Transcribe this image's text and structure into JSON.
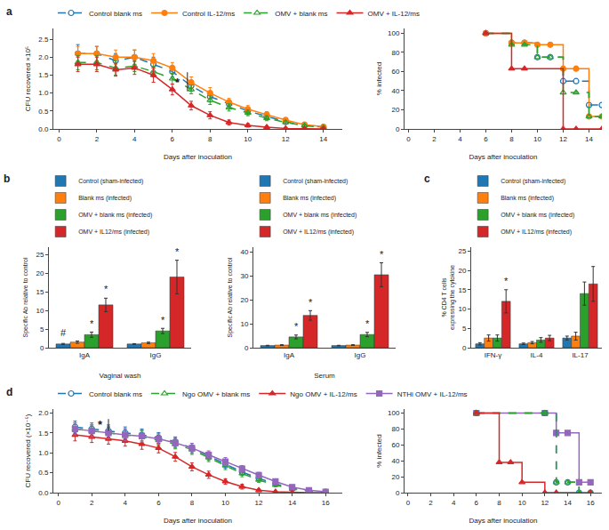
{
  "chart_data": [
    {
      "type": "line",
      "title": "a",
      "xlabel": "Days after inoculation",
      "ylabel": "CFU recovered ×10⁵",
      "x": [
        1,
        2,
        3,
        4,
        5,
        6,
        7,
        8,
        9,
        10,
        11,
        12,
        13,
        14
      ],
      "series": [
        {
          "name": "Control blank ms",
          "color": "#1f77b4",
          "marker": "circle-open",
          "line_style": "dash",
          "values": [
            2.1,
            2.1,
            1.9,
            2.0,
            1.8,
            1.6,
            1.2,
            0.9,
            0.7,
            0.5,
            0.35,
            0.2,
            0.1,
            0.05
          ],
          "errors": [
            0.25,
            0.2,
            0.2,
            0.2,
            0.2,
            0.15,
            0.15,
            0.15,
            0.1,
            0.1,
            0.08,
            0.05,
            0.04,
            0.02
          ]
        },
        {
          "name": "Control IL-12/ms",
          "color": "#ff7f0e",
          "marker": "circle",
          "line_style": "solid",
          "values": [
            2.1,
            2.1,
            2.0,
            2.0,
            1.9,
            1.7,
            1.3,
            1.0,
            0.75,
            0.55,
            0.4,
            0.25,
            0.12,
            0.06
          ],
          "errors": [
            0.2,
            0.2,
            0.2,
            0.2,
            0.2,
            0.15,
            0.15,
            0.15,
            0.1,
            0.1,
            0.08,
            0.05,
            0.04,
            0.02
          ]
        },
        {
          "name": "OMV + blank ms",
          "color": "#2ca02c",
          "marker": "triangle-up-open",
          "line_style": "dash",
          "values": [
            1.85,
            1.85,
            1.7,
            1.75,
            1.6,
            1.4,
            1.1,
            0.8,
            0.6,
            0.45,
            0.3,
            0.18,
            0.09,
            0.04
          ],
          "errors": [
            0.2,
            0.2,
            0.2,
            0.15,
            0.15,
            0.15,
            0.12,
            0.12,
            0.1,
            0.08,
            0.07,
            0.05,
            0.03,
            0.02
          ]
        },
        {
          "name": "OMV + IL-12/ms",
          "color": "#d62728",
          "marker": "triangle-up",
          "line_style": "solid",
          "values": [
            1.8,
            1.8,
            1.65,
            1.7,
            1.5,
            1.1,
            0.65,
            0.38,
            0.18,
            0.1,
            0.05,
            0.015,
            0.005,
            0.002
          ],
          "errors": [
            0.2,
            0.2,
            0.18,
            0.18,
            0.2,
            0.15,
            0.12,
            0.1,
            0.07,
            0.05,
            0.03,
            0.01,
            0.004,
            0.002
          ]
        }
      ],
      "xlim": [
        -0.3,
        15
      ],
      "xticks": [
        0,
        2,
        4,
        6,
        8,
        10,
        12,
        14
      ],
      "ylim": [
        0,
        2.8
      ],
      "yticks": [
        {
          "value": 0,
          "label": "0.0"
        },
        0.5,
        {
          "value": 1,
          "label": "1.0"
        },
        1.5,
        {
          "value": 2,
          "label": "2.0"
        },
        2.5
      ],
      "grid": false,
      "legend": "top",
      "annotations": [
        {
          "text": "*",
          "x": 6.3,
          "y": 1.3,
          "bracket": {
            "x": 6.8,
            "y": [
              1.05,
              1.58
            ]
          }
        }
      ]
    },
    {
      "type": "step",
      "xlabel": "Days after inoculation",
      "ylabel": "% infected",
      "series": [
        {
          "color": "#1f77b4",
          "marker": "circle-open",
          "line_style": "dash",
          "x": [
            6,
            8,
            9,
            10,
            11,
            12,
            13,
            14,
            15
          ],
          "values": [
            100,
            90,
            90,
            75,
            75,
            50,
            50,
            25,
            25
          ]
        },
        {
          "color": "#ff7f0e",
          "marker": "circle",
          "line_style": "solid",
          "x": [
            6,
            8,
            9,
            10,
            11,
            12,
            13,
            14,
            15
          ],
          "values": [
            100,
            90,
            90,
            88,
            88,
            63,
            63,
            13,
            13
          ]
        },
        {
          "color": "#2ca02c",
          "marker": "triangle-up-open",
          "line_style": "dash",
          "x": [
            6,
            8,
            9,
            10,
            11,
            12,
            13,
            14,
            15
          ],
          "values": [
            100,
            88,
            88,
            75,
            75,
            38,
            38,
            13,
            13
          ]
        },
        {
          "color": "#d62728",
          "marker": "triangle-up",
          "line_style": "solid",
          "x": [
            6,
            8,
            9,
            12,
            13,
            15
          ],
          "values": [
            100,
            63,
            63,
            0,
            0,
            0
          ]
        }
      ],
      "xlim": [
        -0.3,
        15
      ],
      "xticks": [
        0,
        2,
        4,
        6,
        8,
        10,
        12,
        14
      ],
      "ylim": [
        0,
        105
      ],
      "yticks": [
        0,
        20,
        40,
        60,
        80,
        100
      ],
      "grid": false,
      "legend": false
    },
    {
      "type": "bar",
      "title": "b",
      "xlabel": "Vaginal wash",
      "ylabel": "Specific Ab relative to control",
      "categories": [
        "IgA",
        "IgG"
      ],
      "series": [
        {
          "name": "Control (sham-infected)",
          "color": "#1f77b4",
          "values": [
            1.0,
            1.0
          ],
          "errors": [
            0.15,
            0.1
          ]
        },
        {
          "name": "Blank ms (infected)",
          "color": "#ff7f0e",
          "values": [
            1.5,
            1.3
          ],
          "errors": [
            0.3,
            0.2
          ]
        },
        {
          "name": "OMV + blank ms (infected)",
          "color": "#2ca02c",
          "values": [
            3.5,
            4.5
          ],
          "errors": [
            0.7,
            0.7
          ]
        },
        {
          "name": "OMV + IL12/ms (infected)",
          "color": "#d62728",
          "values": [
            11.5,
            19.0
          ],
          "errors": [
            1.8,
            4.5
          ]
        }
      ],
      "ylim": [
        0,
        27
      ],
      "yticks": [
        0,
        5,
        10,
        15,
        20,
        25
      ],
      "grid": false,
      "legend": "top",
      "annotations": [
        {
          "text": "#",
          "category": "IgA",
          "series": "Control (sham-infected)",
          "y": 2.2
        },
        {
          "text": "*",
          "category": "IgA",
          "series": "OMV + blank ms (infected)",
          "y": 4.6
        },
        {
          "text": "*",
          "category": "IgA",
          "series": "OMV + IL12/ms (infected)",
          "y": 13.8
        },
        {
          "text": "*",
          "category": "IgG",
          "series": "OMV + blank ms (infected)",
          "y": 5.6
        },
        {
          "text": "*",
          "category": "IgG",
          "series": "OMV + IL12/ms (infected)",
          "y": 24.0
        }
      ]
    },
    {
      "type": "bar",
      "xlabel": "Serum",
      "ylabel": "Specific Ab relative to control",
      "categories": [
        "IgA",
        "IgG"
      ],
      "series": [
        {
          "name": "Control (sham-infected)",
          "color": "#1f77b4",
          "values": [
            0.9,
            0.9
          ],
          "errors": [
            0.1,
            0.1
          ]
        },
        {
          "name": "Blank ms (infected)",
          "color": "#ff7f0e",
          "values": [
            1.1,
            1.1
          ],
          "errors": [
            0.15,
            0.15
          ]
        },
        {
          "name": "OMV + blank ms (infected)",
          "color": "#2ca02c",
          "values": [
            4.5,
            5.5
          ],
          "errors": [
            0.8,
            0.9
          ]
        },
        {
          "name": "OMV + IL12/ms (infected)",
          "color": "#d62728",
          "values": [
            13.5,
            30.5
          ],
          "errors": [
            2.0,
            5.0
          ]
        }
      ],
      "ylim": [
        0,
        42
      ],
      "yticks": [
        0,
        10,
        20,
        30,
        40
      ],
      "grid": false,
      "legend": "top",
      "annotations": [
        {
          "text": "*",
          "category": "IgA",
          "series": "OMV + blank ms (infected)",
          "y": 5.8
        },
        {
          "text": "*",
          "category": "IgA",
          "series": "OMV + IL12/ms (infected)",
          "y": 16.0
        },
        {
          "text": "*",
          "category": "IgG",
          "series": "OMV + blank ms (infected)",
          "y": 6.9
        },
        {
          "text": "*",
          "category": "IgG",
          "series": "OMV + IL12/ms (infected)",
          "y": 36.0
        }
      ]
    },
    {
      "type": "bar",
      "title": "c",
      "ylabel": "% CD4 T cells\nexpressing the cytokine",
      "categories": [
        "IFN-γ",
        "IL-4",
        "IL-17"
      ],
      "series": [
        {
          "name": "Control (sham-infected)",
          "color": "#1f77b4",
          "values": [
            1.0,
            1.0,
            2.5
          ],
          "errors": [
            0.3,
            0.2,
            0.5
          ]
        },
        {
          "name": "Blank ms (infected)",
          "color": "#ff7f0e",
          "values": [
            2.5,
            1.3,
            3.0
          ],
          "errors": [
            0.8,
            0.3,
            1.0
          ]
        },
        {
          "name": "OMV + blank ms (infected)",
          "color": "#2ca02c",
          "values": [
            2.5,
            2.0,
            14.0
          ],
          "errors": [
            0.8,
            0.6,
            3.0
          ]
        },
        {
          "name": "OMV + IL12/ms (infected)",
          "color": "#d62728",
          "values": [
            12.0,
            2.5,
            16.5
          ],
          "errors": [
            3.0,
            0.7,
            4.5
          ]
        }
      ],
      "ylim": [
        0,
        26
      ],
      "yticks": [
        0,
        5,
        10,
        15,
        20,
        25
      ],
      "grid": false,
      "legend": "top",
      "annotations": [
        {
          "text": "*",
          "category": "IFN-γ",
          "series": "OMV + IL12/ms (infected)",
          "y": 15.4
        }
      ]
    },
    {
      "type": "line",
      "title": "d",
      "xlabel": "Days after inoculation",
      "ylabel": "CFU recovered (×10⁻⁵)",
      "x": [
        1,
        2,
        3,
        4,
        5,
        6,
        7,
        8,
        9,
        10,
        11,
        12,
        13,
        14,
        15,
        16
      ],
      "series": [
        {
          "name": "Control blank ms",
          "color": "#1f77b4",
          "marker": "circle-open",
          "line_style": "dash",
          "values": [
            1.65,
            1.6,
            1.55,
            1.5,
            1.45,
            1.38,
            1.28,
            1.12,
            0.92,
            0.72,
            0.52,
            0.36,
            0.22,
            0.11,
            0.05,
            0.02
          ],
          "errors": [
            0.15,
            0.15,
            0.15,
            0.15,
            0.15,
            0.13,
            0.12,
            0.12,
            0.1,
            0.1,
            0.08,
            0.06,
            0.04,
            0.03,
            0.02,
            0.01
          ]
        },
        {
          "name": "Ngo OMV + blank ms",
          "color": "#2ca02c",
          "marker": "triangle-up-open",
          "line_style": "dash",
          "values": [
            1.6,
            1.55,
            1.5,
            1.45,
            1.4,
            1.32,
            1.22,
            1.08,
            0.88,
            0.68,
            0.48,
            0.32,
            0.19,
            0.09,
            0.04,
            0.015
          ],
          "errors": [
            0.15,
            0.15,
            0.15,
            0.15,
            0.15,
            0.13,
            0.12,
            0.12,
            0.1,
            0.1,
            0.08,
            0.06,
            0.04,
            0.03,
            0.02,
            0.01
          ]
        },
        {
          "name": "Ngo OMV + IL-12/ms",
          "color": "#d62728",
          "marker": "triangle-up",
          "line_style": "solid",
          "values": [
            1.45,
            1.4,
            1.35,
            1.3,
            1.22,
            1.12,
            0.9,
            0.65,
            0.45,
            0.28,
            0.15,
            0.06,
            0.02,
            0.005,
            0.002,
            0.001
          ],
          "errors": [
            0.15,
            0.14,
            0.13,
            0.13,
            0.13,
            0.12,
            0.11,
            0.1,
            0.09,
            0.07,
            0.06,
            0.03,
            0.015,
            0.004,
            0.002,
            0.001
          ]
        },
        {
          "name": "NTHi OMV + IL-12/ms",
          "color": "#9467bd",
          "marker": "square",
          "line_style": "solid",
          "values": [
            1.6,
            1.55,
            1.5,
            1.45,
            1.42,
            1.35,
            1.25,
            1.12,
            0.95,
            0.78,
            0.6,
            0.44,
            0.28,
            0.14,
            0.06,
            0.02
          ],
          "errors": [
            0.15,
            0.15,
            0.15,
            0.15,
            0.15,
            0.13,
            0.12,
            0.12,
            0.1,
            0.1,
            0.08,
            0.07,
            0.05,
            0.03,
            0.02,
            0.01
          ]
        }
      ],
      "xlim": [
        -0.3,
        17
      ],
      "xticks": [
        0,
        2,
        4,
        6,
        8,
        10,
        12,
        14,
        16
      ],
      "ylim": [
        0,
        2.1
      ],
      "yticks": [
        {
          "value": 0,
          "label": "0.0"
        },
        0.5,
        {
          "value": 1,
          "label": "1.0"
        },
        1.5,
        {
          "value": 2,
          "label": "2.0"
        }
      ],
      "grid": false,
      "legend": "top",
      "annotations": [
        {
          "text": "*",
          "x": 2.5,
          "y": 1.7,
          "bracket": {
            "x": 3.0,
            "y": [
              1.55,
              1.85
            ]
          }
        }
      ]
    },
    {
      "type": "step",
      "xlabel": "Days after inoculation",
      "ylabel": "% infected",
      "series": [
        {
          "color": "#9467bd",
          "marker": "square",
          "line_style": "solid",
          "x": [
            6,
            12,
            13,
            14,
            15,
            16
          ],
          "values": [
            100,
            100,
            75,
            75,
            13,
            13
          ]
        },
        {
          "color": "#1f77b4",
          "marker": "circle-open",
          "line_style": "dash",
          "x": [
            6,
            12,
            13,
            14,
            15,
            16
          ],
          "values": [
            100,
            100,
            13,
            13,
            0,
            0
          ]
        },
        {
          "color": "#2ca02c",
          "marker": "triangle-up-open",
          "line_style": "dash",
          "x": [
            6,
            12,
            13,
            14,
            15,
            16
          ],
          "values": [
            100,
            100,
            13,
            13,
            0,
            0
          ]
        },
        {
          "color": "#d62728",
          "marker": "triangle-up",
          "line_style": "solid",
          "x": [
            6,
            8,
            9,
            10,
            12,
            13,
            16
          ],
          "values": [
            100,
            38,
            38,
            13,
            0,
            0,
            0
          ]
        }
      ],
      "xlim": [
        -0.3,
        17
      ],
      "xticks": [
        0,
        2,
        4,
        6,
        8,
        10,
        12,
        14,
        16
      ],
      "ylim": [
        0,
        105
      ],
      "yticks": [
        0,
        20,
        40,
        60,
        80,
        100
      ],
      "grid": false,
      "legend": false
    }
  ]
}
